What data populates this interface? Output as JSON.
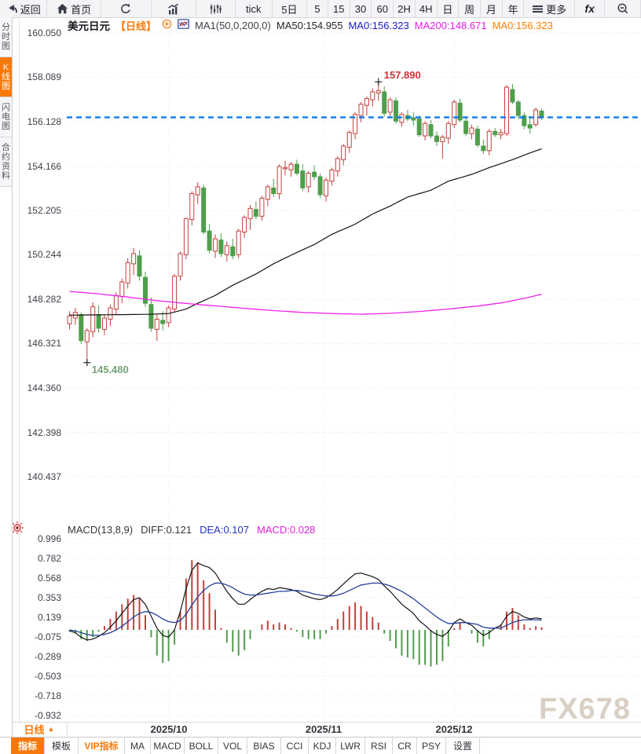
{
  "toolbar": {
    "items": [
      {
        "name": "back",
        "icon": "back-arrow",
        "label": "返回"
      },
      {
        "name": "home",
        "icon": "home",
        "label": "首页"
      },
      {
        "name": "refresh",
        "icon": "refresh",
        "label": ""
      },
      {
        "name": "chart-type-bar",
        "icon": "bar-chart",
        "label": ""
      },
      {
        "name": "chart-type-volume",
        "icon": "sliders",
        "label": ""
      },
      {
        "name": "interval-tick",
        "icon": "",
        "label": "tick"
      },
      {
        "name": "interval-5d",
        "icon": "",
        "label": "5日"
      },
      {
        "name": "interval-5",
        "icon": "",
        "label": "5"
      },
      {
        "name": "interval-15",
        "icon": "",
        "label": "15"
      },
      {
        "name": "interval-30",
        "icon": "",
        "label": "30"
      },
      {
        "name": "interval-60",
        "icon": "",
        "label": "60"
      },
      {
        "name": "interval-2h",
        "icon": "",
        "label": "2H"
      },
      {
        "name": "interval-4h",
        "icon": "",
        "label": "4H"
      },
      {
        "name": "interval-day",
        "icon": "",
        "label": "日"
      },
      {
        "name": "interval-week",
        "icon": "",
        "label": "周"
      },
      {
        "name": "interval-month",
        "icon": "",
        "label": "月"
      },
      {
        "name": "interval-year",
        "icon": "",
        "label": "年"
      },
      {
        "name": "more-menu",
        "icon": "menu",
        "label": "更多"
      },
      {
        "name": "indicator-fx",
        "icon": "fx",
        "label": "fx"
      },
      {
        "name": "zoom-out",
        "icon": "zoom-out",
        "label": ""
      }
    ]
  },
  "sidebar": {
    "tabs": [
      {
        "name": "time-share-chart",
        "label": "分时图",
        "active": false
      },
      {
        "name": "kline-chart",
        "label": "K线图",
        "active": true
      },
      {
        "name": "lightning-chart",
        "label": "闪电图",
        "active": false
      },
      {
        "name": "contract-info",
        "label": "合约资料",
        "active": false
      }
    ]
  },
  "chart_header": {
    "symbol": "美元日元",
    "period_tag": "【日线】",
    "ma_settings": "MA1(50,0,200,0)",
    "ma50_label": "MA50:154.955",
    "ma0_blue_label": "MA0:156.323",
    "ma200_label": "MA200:148.671",
    "ma0_orange_label": "MA0:156.323"
  },
  "macd_header": {
    "title": "MACD(13,8,9)",
    "diff_label": "DIFF:0.121",
    "dea_label": "DEA:0.107",
    "macd_label": "MACD:0.028"
  },
  "annotations": {
    "high": "157.890",
    "low": "145.480"
  },
  "price_axis_labels": [
    "160.050",
    "158.089",
    "156.128",
    "154.166",
    "152.205",
    "150.244",
    "148.282",
    "146.321",
    "144.360",
    "142.398",
    "140.437"
  ],
  "macd_axis_labels": [
    "0.996",
    "0.782",
    "0.568",
    "0.353",
    "0.139",
    "-0.075",
    "-0.289",
    "-0.503",
    "-0.718",
    "-0.932"
  ],
  "x_axis": {
    "labels": [
      "2025/10",
      "2025/11",
      "2025/12"
    ]
  },
  "bottom_bar": {
    "period": "日线",
    "arrow": "▲",
    "tabs": [
      {
        "label": "指标",
        "active": true
      },
      {
        "label": "模板"
      },
      {
        "label": "VIP指标",
        "vip": true
      },
      {
        "label": "MA"
      },
      {
        "label": "MACD"
      },
      {
        "label": "BOLL"
      },
      {
        "label": "VOL"
      },
      {
        "label": "BIAS"
      },
      {
        "label": "CCI"
      },
      {
        "label": "KDJ"
      },
      {
        "label": "LWR"
      },
      {
        "label": "RSI"
      },
      {
        "label": "CR"
      },
      {
        "label": "PSY"
      },
      {
        "label": "设置"
      }
    ]
  },
  "watermark": "FX678",
  "colors": {
    "accent_orange": "#f8790a",
    "up_red": "#c2413b",
    "down_green": "#4f9e4c",
    "ma50_black": "#141414",
    "ma200_magenta": "#ee22ee",
    "ma0_blue_text": "#1b1bd1",
    "current_price_line": "#0d7be8",
    "diff_line": "#141414",
    "dea_line": "#24409a",
    "macd_text_magenta": "#dd22dd",
    "high_anno": "#cf3333",
    "low_anno": "#79a079",
    "grid": "#e2e2e6"
  },
  "chart_data": {
    "type": "candlestick",
    "symbol": "美元日元",
    "period": "日线",
    "title": "美元日元【日线】",
    "x_axis_labels": [
      "2025/10",
      "2025/11",
      "2025/12"
    ],
    "price_axis_ticks": [
      160.05,
      158.089,
      156.128,
      154.166,
      152.205,
      150.244,
      148.282,
      146.321,
      144.36,
      142.398,
      140.437
    ],
    "current_price": 156.323,
    "high_annotation": 157.89,
    "low_annotation": 145.48,
    "ma50_current": 154.955,
    "ma200_current": 148.671,
    "high_candle_index": 53,
    "low_candle_index": 3,
    "candles_ohlc": [
      [
        147.2,
        147.75,
        146.95,
        147.55
      ],
      [
        147.45,
        147.9,
        147.15,
        147.7
      ],
      [
        147.6,
        147.7,
        146.3,
        146.45
      ],
      [
        146.4,
        147.0,
        145.48,
        146.9
      ],
      [
        146.85,
        148.15,
        146.6,
        147.95
      ],
      [
        147.6,
        148.0,
        146.8,
        147.0
      ],
      [
        146.95,
        147.6,
        146.7,
        147.45
      ],
      [
        147.4,
        148.05,
        147.1,
        147.9
      ],
      [
        147.85,
        148.6,
        147.6,
        148.45
      ],
      [
        148.4,
        149.2,
        148.1,
        149.05
      ],
      [
        149.0,
        150.1,
        148.75,
        149.9
      ],
      [
        149.85,
        150.55,
        149.35,
        150.3
      ],
      [
        150.2,
        150.45,
        149.1,
        149.3
      ],
      [
        149.25,
        149.5,
        147.95,
        148.1
      ],
      [
        148.05,
        148.35,
        146.85,
        147.0
      ],
      [
        146.95,
        147.6,
        146.45,
        147.4
      ],
      [
        147.35,
        147.75,
        146.9,
        147.2
      ],
      [
        147.25,
        148.0,
        147.05,
        147.9
      ],
      [
        147.85,
        149.4,
        147.7,
        149.3
      ],
      [
        149.3,
        150.4,
        149.1,
        150.3
      ],
      [
        150.25,
        151.9,
        150.05,
        151.85
      ],
      [
        151.8,
        153.05,
        151.55,
        152.95
      ],
      [
        152.9,
        153.45,
        152.5,
        153.25
      ],
      [
        153.2,
        153.35,
        151.15,
        151.25
      ],
      [
        151.3,
        151.6,
        150.3,
        150.45
      ],
      [
        150.4,
        151.15,
        150.1,
        150.95
      ],
      [
        150.9,
        151.2,
        150.15,
        150.3
      ],
      [
        150.25,
        150.85,
        149.95,
        150.65
      ],
      [
        150.6,
        150.95,
        150.05,
        150.2
      ],
      [
        150.25,
        151.4,
        150.1,
        151.3
      ],
      [
        151.25,
        152.0,
        151.0,
        151.9
      ],
      [
        151.85,
        152.45,
        151.35,
        152.3
      ],
      [
        152.25,
        152.6,
        151.8,
        151.95
      ],
      [
        151.95,
        152.85,
        151.75,
        152.75
      ],
      [
        152.7,
        153.35,
        152.4,
        153.25
      ],
      [
        153.2,
        153.6,
        152.8,
        152.95
      ],
      [
        152.95,
        154.25,
        152.7,
        154.15
      ],
      [
        154.05,
        154.4,
        153.75,
        154.1
      ],
      [
        154.0,
        154.35,
        153.7,
        154.25
      ],
      [
        154.25,
        154.45,
        153.75,
        153.85
      ],
      [
        153.95,
        154.25,
        153.05,
        153.2
      ],
      [
        153.25,
        153.95,
        153.0,
        153.85
      ],
      [
        153.9,
        154.2,
        153.55,
        153.7
      ],
      [
        153.7,
        153.85,
        152.75,
        152.9
      ],
      [
        152.85,
        153.65,
        152.6,
        153.55
      ],
      [
        153.5,
        154.1,
        153.3,
        154.0
      ],
      [
        153.95,
        154.6,
        153.7,
        154.5
      ],
      [
        154.45,
        155.15,
        154.2,
        155.05
      ],
      [
        155.0,
        155.75,
        154.75,
        155.65
      ],
      [
        155.6,
        156.55,
        155.35,
        156.45
      ],
      [
        156.4,
        157.0,
        156.1,
        156.9
      ],
      [
        156.85,
        157.25,
        156.4,
        157.15
      ],
      [
        157.1,
        157.6,
        156.8,
        157.45
      ],
      [
        157.4,
        157.89,
        157.05,
        157.5
      ],
      [
        157.45,
        157.7,
        156.35,
        156.5
      ],
      [
        156.55,
        157.2,
        156.3,
        157.1
      ],
      [
        157.05,
        157.2,
        156.05,
        156.15
      ],
      [
        156.1,
        156.55,
        155.9,
        156.45
      ],
      [
        156.4,
        156.65,
        156.15,
        156.25
      ],
      [
        156.3,
        156.55,
        155.95,
        156.2
      ],
      [
        156.25,
        156.4,
        155.45,
        155.55
      ],
      [
        155.5,
        156.15,
        155.3,
        156.05
      ],
      [
        156.0,
        156.2,
        155.4,
        155.5
      ],
      [
        155.5,
        155.7,
        155.05,
        155.25
      ],
      [
        155.25,
        155.55,
        154.5,
        155.45
      ],
      [
        155.4,
        156.15,
        155.15,
        156.05
      ],
      [
        156.0,
        157.1,
        155.85,
        157.0
      ],
      [
        156.95,
        157.15,
        156.1,
        156.2
      ],
      [
        156.15,
        156.35,
        155.5,
        155.6
      ],
      [
        155.6,
        156.0,
        155.35,
        155.85
      ],
      [
        155.8,
        155.95,
        155.0,
        155.1
      ],
      [
        155.05,
        155.35,
        154.7,
        154.85
      ],
      [
        154.85,
        155.8,
        154.65,
        155.7
      ],
      [
        155.7,
        155.85,
        155.45,
        155.55
      ],
      [
        155.55,
        155.8,
        155.35,
        155.65
      ],
      [
        155.6,
        157.75,
        155.5,
        157.65
      ],
      [
        157.55,
        157.8,
        156.9,
        157.0
      ],
      [
        157.0,
        157.1,
        156.25,
        156.4
      ],
      [
        156.4,
        156.55,
        155.8,
        155.95
      ],
      [
        156.0,
        156.3,
        155.6,
        155.85
      ],
      [
        156.0,
        156.75,
        155.9,
        156.65
      ],
      [
        156.6,
        156.7,
        156.2,
        156.32
      ]
    ],
    "ma50_anchors": [
      [
        0,
        147.58
      ],
      [
        8,
        147.6
      ],
      [
        14,
        147.62
      ],
      [
        17,
        147.65
      ],
      [
        20,
        147.85
      ],
      [
        22,
        148.1
      ],
      [
        25,
        148.45
      ],
      [
        28,
        148.9
      ],
      [
        32,
        149.4
      ],
      [
        35,
        149.85
      ],
      [
        39,
        150.35
      ],
      [
        42,
        150.7
      ],
      [
        45,
        151.15
      ],
      [
        49,
        151.6
      ],
      [
        52,
        152.05
      ],
      [
        55,
        152.4
      ],
      [
        58,
        152.8
      ],
      [
        62,
        153.1
      ],
      [
        65,
        153.5
      ],
      [
        69,
        153.8
      ],
      [
        72,
        154.1
      ],
      [
        76,
        154.45
      ],
      [
        79,
        154.75
      ],
      [
        81,
        154.93
      ]
    ],
    "ma200_anchors": [
      [
        0,
        148.63
      ],
      [
        5,
        148.52
      ],
      [
        10,
        148.38
      ],
      [
        15,
        148.22
      ],
      [
        19,
        148.12
      ],
      [
        22,
        148.05
      ],
      [
        26,
        147.97
      ],
      [
        30,
        147.88
      ],
      [
        35,
        147.78
      ],
      [
        40,
        147.7
      ],
      [
        45,
        147.65
      ],
      [
        50,
        147.62
      ],
      [
        55,
        147.66
      ],
      [
        60,
        147.74
      ],
      [
        65,
        147.85
      ],
      [
        70,
        147.98
      ],
      [
        74,
        148.12
      ],
      [
        78,
        148.32
      ],
      [
        81,
        148.5
      ]
    ],
    "macd": {
      "params": "13,8,9",
      "diff_current": 0.121,
      "dea_current": 0.107,
      "macd_current": 0.028,
      "axis_ticks": [
        0.996,
        0.782,
        0.568,
        0.353,
        0.139,
        -0.075,
        -0.289,
        -0.503,
        -0.718,
        -0.932
      ],
      "diff": [
        -0.01,
        -0.03,
        -0.08,
        -0.11,
        -0.1,
        -0.07,
        -0.03,
        0.03,
        0.1,
        0.18,
        0.26,
        0.33,
        0.35,
        0.28,
        0.15,
        0.02,
        -0.06,
        -0.08,
        0.0,
        0.2,
        0.45,
        0.65,
        0.73,
        0.7,
        0.68,
        0.62,
        0.52,
        0.42,
        0.34,
        0.28,
        0.28,
        0.33,
        0.38,
        0.42,
        0.45,
        0.44,
        0.46,
        0.45,
        0.44,
        0.42,
        0.38,
        0.36,
        0.34,
        0.33,
        0.35,
        0.39,
        0.44,
        0.5,
        0.56,
        0.61,
        0.62,
        0.6,
        0.58,
        0.55,
        0.48,
        0.42,
        0.35,
        0.28,
        0.23,
        0.18,
        0.1,
        0.05,
        -0.01,
        -0.05,
        -0.07,
        -0.02,
        0.08,
        0.12,
        0.08,
        0.05,
        -0.01,
        -0.06,
        -0.03,
        0.02,
        0.05,
        0.15,
        0.2,
        0.18,
        0.14,
        0.12,
        0.13,
        0.121
      ],
      "dea": [
        0.0,
        -0.01,
        -0.03,
        -0.05,
        -0.06,
        -0.06,
        -0.05,
        -0.03,
        0.0,
        0.04,
        0.09,
        0.14,
        0.18,
        0.2,
        0.19,
        0.16,
        0.12,
        0.09,
        0.08,
        0.1,
        0.17,
        0.27,
        0.36,
        0.43,
        0.48,
        0.51,
        0.51,
        0.49,
        0.46,
        0.42,
        0.39,
        0.38,
        0.38,
        0.39,
        0.4,
        0.41,
        0.42,
        0.42,
        0.43,
        0.43,
        0.42,
        0.41,
        0.39,
        0.38,
        0.37,
        0.37,
        0.38,
        0.4,
        0.43,
        0.46,
        0.49,
        0.5,
        0.51,
        0.51,
        0.5,
        0.48,
        0.45,
        0.42,
        0.38,
        0.34,
        0.29,
        0.24,
        0.19,
        0.14,
        0.1,
        0.07,
        0.07,
        0.08,
        0.08,
        0.07,
        0.06,
        0.03,
        0.02,
        0.02,
        0.02,
        0.05,
        0.08,
        0.1,
        0.11,
        0.11,
        0.11,
        0.107
      ],
      "histogram_rule": "2*(diff-dea)"
    }
  }
}
